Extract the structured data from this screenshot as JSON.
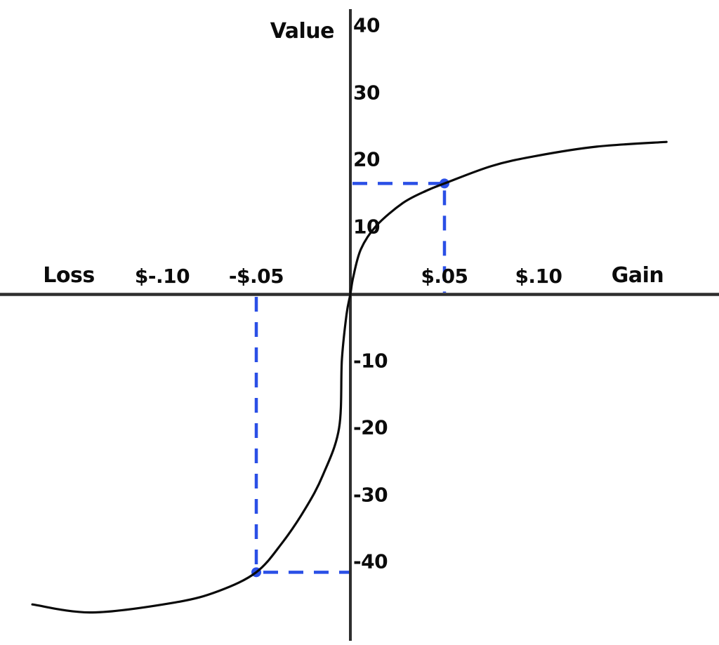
{
  "chart_data": {
    "type": "line",
    "y_axis_title": "Value",
    "loss_label": "Loss",
    "gain_label": "Gain",
    "y_ticks": [
      40,
      30,
      20,
      10,
      -10,
      -20,
      -30,
      -40
    ],
    "x_ticks": [
      {
        "label": "$-.10",
        "cents": -10
      },
      {
        "label": "-$.05",
        "cents": -5
      },
      {
        "label": "$.05",
        "cents": 5
      },
      {
        "label": "$.10",
        "cents": 10
      }
    ],
    "x_range_cents": [
      -17,
      17
    ],
    "y_range": [
      -48,
      42
    ],
    "grid": false,
    "legend": false,
    "curve_points": [
      [
        -16.9,
        -46.3
      ],
      [
        -13.7,
        -47.5
      ],
      [
        -9.3,
        -46.0
      ],
      [
        -7.0,
        -44.3
      ],
      [
        -5.0,
        -41.5
      ],
      [
        -3.62,
        -37.1
      ],
      [
        -2.39,
        -32.0
      ],
      [
        -1.46,
        -27.0
      ],
      [
        -0.6,
        -20.0
      ],
      [
        -0.45,
        -9.8
      ],
      [
        -0.2,
        -3.0
      ],
      [
        0,
        0
      ],
      [
        0.15,
        2.5
      ],
      [
        0.56,
        6.7
      ],
      [
        1.38,
        10.2
      ],
      [
        2.8,
        13.6
      ],
      [
        4.1,
        15.5
      ],
      [
        5.0,
        16.5
      ],
      [
        7.5,
        19.1
      ],
      [
        9.85,
        20.6
      ],
      [
        13.1,
        22.0
      ],
      [
        16.8,
        22.7
      ]
    ],
    "reference_points": [
      {
        "cents": 5,
        "value": 16.5
      },
      {
        "cents": -5,
        "value": -41.5
      }
    ],
    "colors": {
      "curve": "#0a0a0a",
      "axis": "#2e2e2e",
      "reference": "#2a4fe6"
    }
  }
}
